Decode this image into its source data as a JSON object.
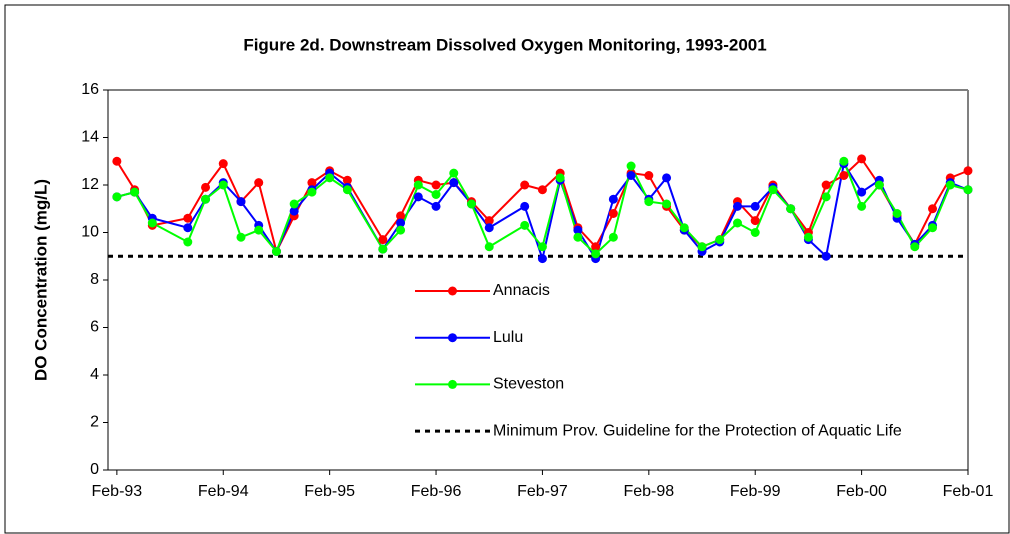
{
  "chart_data": {
    "type": "line",
    "title": "Figure 2d. Downstream Dissolved Oxygen Monitoring, 1993-2001",
    "y_label": "DO Concentration (mg/L)",
    "x": [
      "Feb-93",
      "Apr-93",
      "Jun-93",
      "Oct-93",
      "Dec-93",
      "Feb-94",
      "Apr-94",
      "Jun-94",
      "Aug-94",
      "Oct-94",
      "Dec-94",
      "Feb-95",
      "Apr-95",
      "Aug-95",
      "Oct-95",
      "Dec-95",
      "Feb-96",
      "Apr-96",
      "Jun-96",
      "Aug-96",
      "Dec-96",
      "Feb-97",
      "Apr-97",
      "Jun-97",
      "Aug-97",
      "Oct-97",
      "Dec-97",
      "Feb-98",
      "Apr-98",
      "Jun-98",
      "Aug-98",
      "Oct-98",
      "Dec-98",
      "Feb-99",
      "Apr-99",
      "Jun-99",
      "Aug-99",
      "Oct-99",
      "Dec-99",
      "Feb-00",
      "Apr-00",
      "Jun-00",
      "Aug-00",
      "Oct-00",
      "Dec-00",
      "Feb-01"
    ],
    "series": [
      {
        "name": "Annacis",
        "color": "#ff0000",
        "values": [
          13.0,
          11.8,
          10.3,
          10.6,
          11.9,
          12.9,
          11.3,
          12.1,
          9.2,
          10.7,
          12.1,
          12.6,
          12.2,
          9.7,
          10.7,
          12.2,
          12.0,
          12.1,
          11.3,
          10.5,
          12.0,
          11.8,
          12.5,
          10.2,
          9.4,
          10.8,
          12.5,
          12.4,
          11.1,
          10.1,
          9.4,
          9.7,
          11.3,
          10.5,
          12.0,
          11.0,
          10.0,
          12.0,
          12.4,
          13.1,
          12.0,
          10.7,
          9.5,
          11.0,
          12.3,
          12.6
        ]
      },
      {
        "name": "Lulu",
        "color": "#0000ff",
        "values": [
          11.5,
          11.7,
          10.6,
          10.2,
          11.4,
          12.1,
          11.3,
          10.3,
          9.2,
          10.9,
          11.8,
          12.5,
          11.9,
          9.3,
          10.4,
          11.5,
          11.1,
          12.1,
          11.2,
          10.2,
          11.1,
          8.9,
          12.2,
          10.1,
          8.9,
          11.4,
          12.4,
          11.4,
          12.3,
          10.1,
          9.2,
          9.6,
          11.1,
          11.1,
          11.9,
          11.0,
          9.7,
          9.0,
          12.9,
          11.7,
          12.2,
          10.6,
          9.5,
          10.3,
          12.1,
          11.8
        ]
      },
      {
        "name": "Steveston",
        "color": "#00ff00",
        "values": [
          11.5,
          11.7,
          10.4,
          9.6,
          11.4,
          12.0,
          9.8,
          10.1,
          9.2,
          11.2,
          11.7,
          12.3,
          11.8,
          9.3,
          10.1,
          12.0,
          11.6,
          12.5,
          11.2,
          9.4,
          10.3,
          9.4,
          12.3,
          9.8,
          9.1,
          9.8,
          12.8,
          11.3,
          11.2,
          10.2,
          9.4,
          9.7,
          10.4,
          10.0,
          11.8,
          11.0,
          9.8,
          11.5,
          13.0,
          11.1,
          12.0,
          10.8,
          9.4,
          10.2,
          12.0,
          11.8
        ]
      }
    ],
    "guideline": {
      "name": "Minimum Prov. Guideline for the Protection of Aquatic Life",
      "value": 9,
      "color": "#000000"
    },
    "xlim": [
      "Jan-93",
      "Feb-01"
    ],
    "xticks": [
      "Feb-93",
      "Feb-94",
      "Feb-95",
      "Feb-96",
      "Feb-97",
      "Feb-98",
      "Feb-99",
      "Feb-00",
      "Feb-01"
    ],
    "ylim": [
      0,
      16
    ],
    "yticks": [
      0,
      2,
      4,
      6,
      8,
      10,
      12,
      14,
      16
    ]
  }
}
